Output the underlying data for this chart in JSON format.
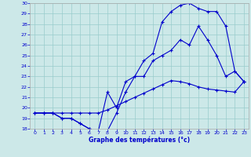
{
  "title": "Graphe des températures (°c)",
  "xlim": [
    -0.5,
    23.5
  ],
  "ylim": [
    18,
    30
  ],
  "yticks": [
    18,
    19,
    20,
    21,
    22,
    23,
    24,
    25,
    26,
    27,
    28,
    29,
    30
  ],
  "xticks": [
    0,
    1,
    2,
    3,
    4,
    5,
    6,
    7,
    8,
    9,
    10,
    11,
    12,
    13,
    14,
    15,
    16,
    17,
    18,
    19,
    20,
    21,
    22,
    23
  ],
  "bg_color": "#cce8e8",
  "line_color": "#0000cc",
  "grid_color": "#99cccc",
  "line1_x": [
    0,
    1,
    2,
    3,
    4,
    5,
    6,
    7,
    8,
    9,
    10,
    11,
    12,
    13,
    14,
    15,
    16,
    17,
    18,
    19,
    20,
    21,
    22,
    23
  ],
  "line1_y": [
    19.5,
    19.5,
    19.5,
    19.5,
    19.5,
    19.5,
    19.5,
    19.5,
    19.8,
    20.2,
    20.6,
    21.0,
    21.4,
    21.8,
    22.2,
    22.6,
    22.5,
    22.3,
    22.0,
    21.8,
    21.7,
    21.6,
    21.5,
    22.5
  ],
  "line2_x": [
    0,
    1,
    2,
    3,
    4,
    5,
    6,
    7,
    8,
    9,
    10,
    11,
    12,
    13,
    14,
    15,
    16,
    17,
    18,
    19,
    20,
    21,
    22,
    23
  ],
  "line2_y": [
    19.5,
    19.5,
    19.5,
    19.0,
    19.0,
    18.5,
    18.0,
    17.8,
    21.5,
    20.0,
    22.5,
    23.0,
    23.0,
    24.5,
    25.0,
    25.5,
    26.5,
    26.0,
    27.8,
    26.5,
    25.0,
    23.0,
    23.5,
    22.5
  ],
  "line3_x": [
    0,
    1,
    2,
    3,
    4,
    5,
    6,
    7,
    8,
    9,
    10,
    11,
    12,
    13,
    14,
    15,
    16,
    17,
    18,
    19,
    20,
    21,
    22,
    23
  ],
  "line3_y": [
    19.5,
    19.5,
    19.5,
    19.0,
    19.0,
    18.5,
    18.0,
    17.8,
    17.8,
    19.5,
    21.5,
    23.0,
    24.5,
    25.2,
    28.2,
    29.2,
    29.8,
    30.0,
    29.5,
    29.2,
    29.2,
    27.8,
    23.5,
    22.5
  ]
}
